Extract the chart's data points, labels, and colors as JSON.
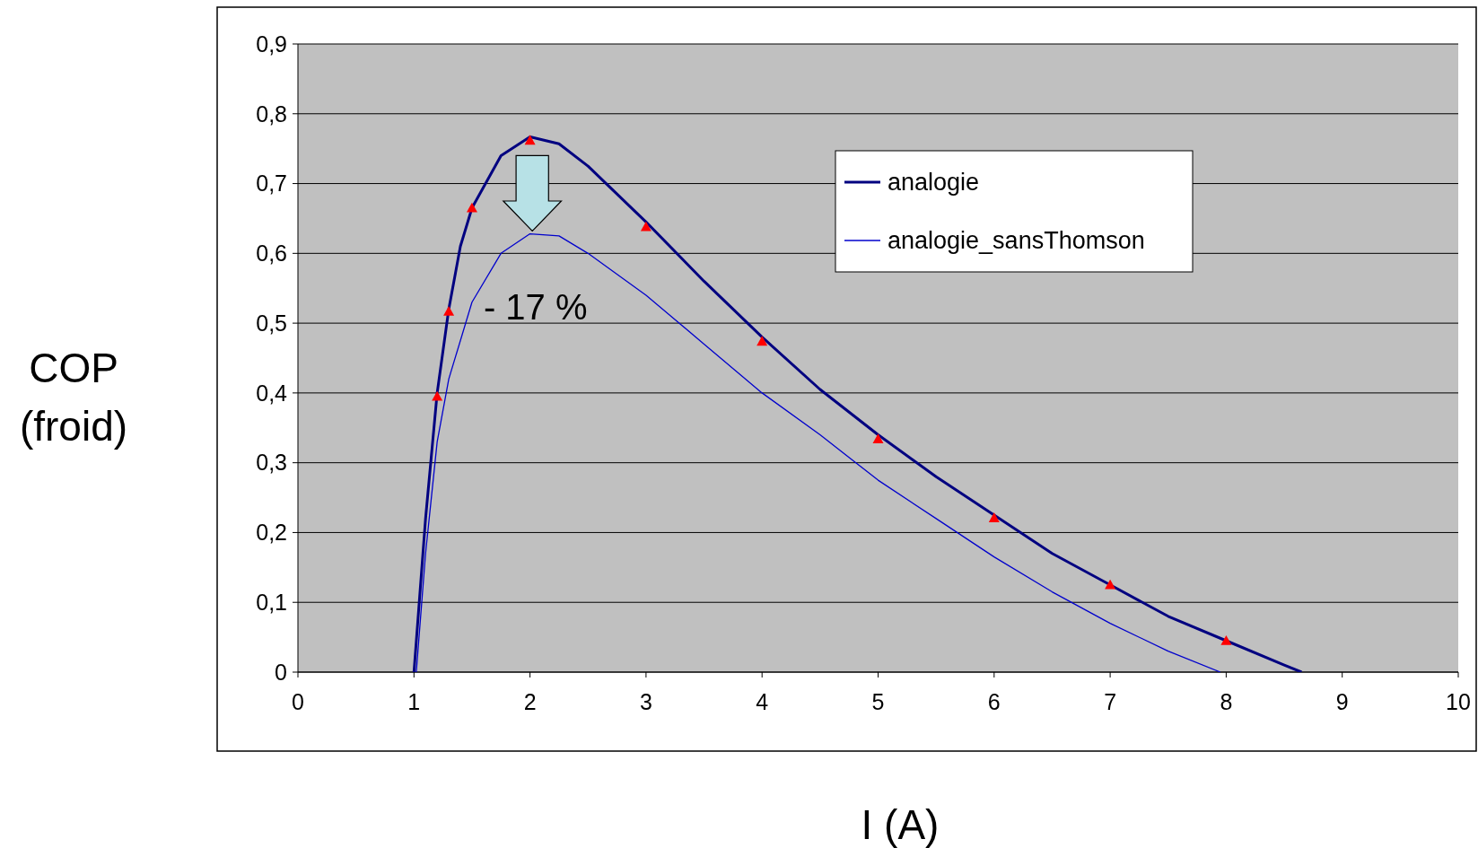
{
  "chart_data": {
    "type": "line",
    "xlabel": "I (A)",
    "ylabel": "COP\n(froid)",
    "xlim": [
      0,
      10
    ],
    "xticks": [
      0,
      1,
      2,
      3,
      4,
      5,
      6,
      7,
      8,
      9,
      10
    ],
    "ylim": [
      0,
      0.9
    ],
    "yticks": [
      {
        "value": 0,
        "label": "0"
      },
      {
        "value": 0.1,
        "label": "0,1"
      },
      {
        "value": 0.2,
        "label": "0,2"
      },
      {
        "value": 0.3,
        "label": "0,3"
      },
      {
        "value": 0.4,
        "label": "0,4"
      },
      {
        "value": 0.5,
        "label": "0,5"
      },
      {
        "value": 0.6,
        "label": "0,6"
      },
      {
        "value": 0.7,
        "label": "0,7"
      },
      {
        "value": 0.8,
        "label": "0,8"
      },
      {
        "value": 0.9,
        "label": "0,9"
      }
    ],
    "grid": "y",
    "legend": "top right",
    "annotations": [
      "- 17 %"
    ],
    "series": [
      {
        "name": "analogie",
        "color": "#000080",
        "marker": "none",
        "line_style": "solid",
        "x": [
          1.0,
          1.1,
          1.2,
          1.3,
          1.4,
          1.5,
          1.75,
          2,
          2.25,
          2.5,
          3,
          3.5,
          4,
          4.5,
          5,
          5.5,
          6,
          6.5,
          7,
          7.5,
          8,
          8.5,
          8.65
        ],
        "values": [
          0,
          0.22,
          0.4,
          0.52,
          0.61,
          0.665,
          0.74,
          0.767,
          0.757,
          0.725,
          0.645,
          0.56,
          0.48,
          0.405,
          0.34,
          0.28,
          0.225,
          0.17,
          0.125,
          0.08,
          0.045,
          0.01,
          0
        ]
      },
      {
        "type": "scatter",
        "color": "#ff0000",
        "marker": "triangle",
        "x": [
          1.2,
          1.3,
          1.5,
          2,
          3,
          4,
          5,
          6,
          7,
          8
        ],
        "values": [
          0.395,
          0.517,
          0.665,
          0.762,
          0.638,
          0.474,
          0.334,
          0.221,
          0.125,
          0.045
        ]
      },
      {
        "name": "analogie_sansThomson",
        "color": "#0000cc",
        "marker": "none",
        "line_style": "solid",
        "x": [
          1.02,
          1.1,
          1.2,
          1.3,
          1.5,
          1.75,
          2,
          2.25,
          2.5,
          3,
          3.5,
          4,
          4.5,
          5,
          5.5,
          6,
          6.5,
          7,
          7.5,
          7.95
        ],
        "values": [
          0,
          0.17,
          0.33,
          0.42,
          0.53,
          0.6,
          0.628,
          0.625,
          0.6,
          0.54,
          0.47,
          0.4,
          0.34,
          0.275,
          0.22,
          0.165,
          0.115,
          0.07,
          0.03,
          0
        ]
      }
    ]
  }
}
